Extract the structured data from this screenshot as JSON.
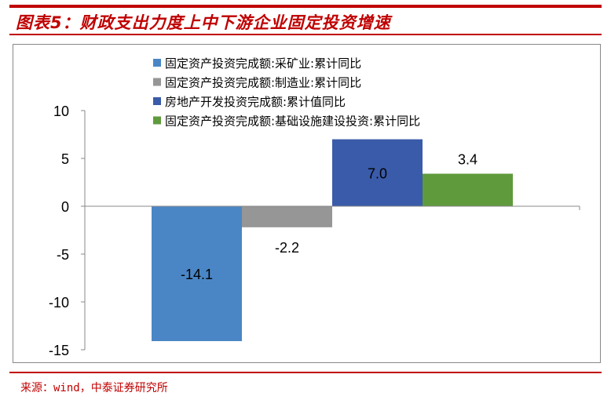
{
  "title": "图表5：财政支出力度上中下游企业固定投资增速",
  "source": "来源：wind，中泰证券研究所",
  "chart_data": {
    "type": "bar",
    "title": "",
    "xlabel": "",
    "ylabel": "",
    "ylim": [
      -15,
      10
    ],
    "yticks": [
      10,
      5,
      0,
      -5,
      -10,
      -15
    ],
    "grid": false,
    "legend_position": "top",
    "series": [
      {
        "name": "固定资产投资完成额:采矿业:累计同比",
        "value": -14.1,
        "label": "-14.1",
        "color": "#4a86c5"
      },
      {
        "name": "固定资产投资完成额:制造业:累计同比",
        "value": -2.2,
        "label": "-2.2",
        "color": "#969696"
      },
      {
        "name": "房地产开发投资完成额:累计值同比",
        "value": 7.0,
        "label": "7.0",
        "color": "#3a5ba9"
      },
      {
        "name": "固定资产投资完成额:基础设施建设投资:累计同比",
        "value": 3.4,
        "label": "3.4",
        "color": "#5f9a3c"
      }
    ]
  }
}
